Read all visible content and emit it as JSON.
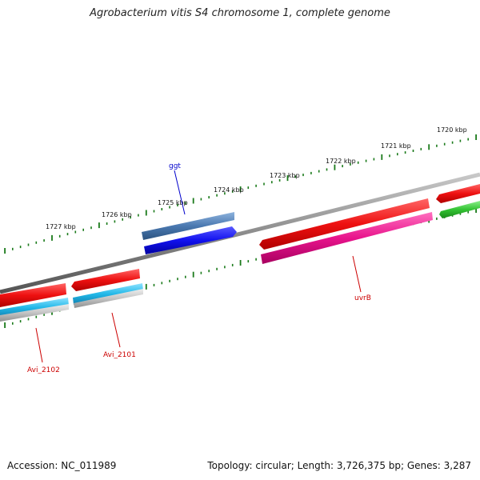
{
  "title": "Agrobacterium vitis S4 chromosome 1, complete genome",
  "footer": {
    "accession": "Accession: NC_011989",
    "summary": "Topology: circular; Length: 3,726,375 bp; Genes: 3,287"
  },
  "kbp_labels": [
    {
      "id": "1720",
      "text": "1720 kbp"
    },
    {
      "id": "1721",
      "text": "1721 kbp"
    },
    {
      "id": "1722",
      "text": "1722 kbp"
    },
    {
      "id": "1723",
      "text": "1723 kbp"
    },
    {
      "id": "1724",
      "text": "1724 kbp"
    },
    {
      "id": "1725",
      "text": "1725 kbp"
    },
    {
      "id": "1726",
      "text": "1726 kbp"
    },
    {
      "id": "1727",
      "text": "1727 kbp"
    }
  ],
  "gene_labels": {
    "ggt": {
      "text": "ggt",
      "color": "#0000cc"
    },
    "uvrB": {
      "text": "uvrB",
      "color": "#cc0000"
    },
    "avi2101": {
      "text": "Avi_2101",
      "color": "#cc0000"
    },
    "avi2102": {
      "text": "Avi_2102",
      "color": "#cc0000"
    }
  },
  "colors": {
    "backbone": "#8c8c8c",
    "ticks": "#1a7a1a",
    "gene_red": "#ee1111",
    "gene_pink": "#e8148c",
    "gene_cyan": "#22b8e8",
    "gene_blue": "#1111ee",
    "gene_steel": "#4a78b0",
    "gene_green": "#33c333",
    "gene_grey": "#c4c4c4"
  }
}
